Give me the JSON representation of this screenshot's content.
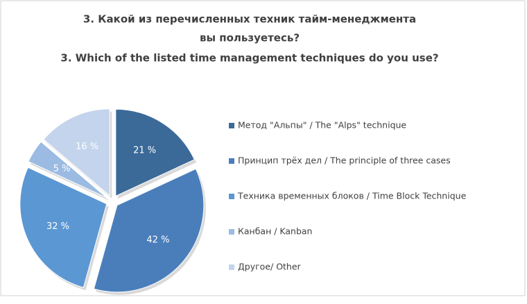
{
  "chart_data": {
    "type": "pie",
    "title": [
      "3. Какой из перечисленных техник тайм-менеджмента",
      "вы пользуетесь?",
      "3. Which of the listed time management techniques do you use?"
    ],
    "categories": [
      "Метод \"Альпы\" / The \"Alps\" technique",
      "Принцип трёх дел / The principle of three cases",
      "Техника временных блоков / Time Block Technique",
      "Канбан / Kanban",
      "Другое/ Other"
    ],
    "values": [
      21,
      42,
      32,
      5,
      16
    ],
    "value_labels": [
      "21 %",
      "42 %",
      "32 %",
      "5 %",
      "16 %"
    ],
    "colors": [
      "#3b6a98",
      "#4a7ebb",
      "#5b97d3",
      "#9bbbe2",
      "#c3d4ec"
    ],
    "legend": "right"
  }
}
